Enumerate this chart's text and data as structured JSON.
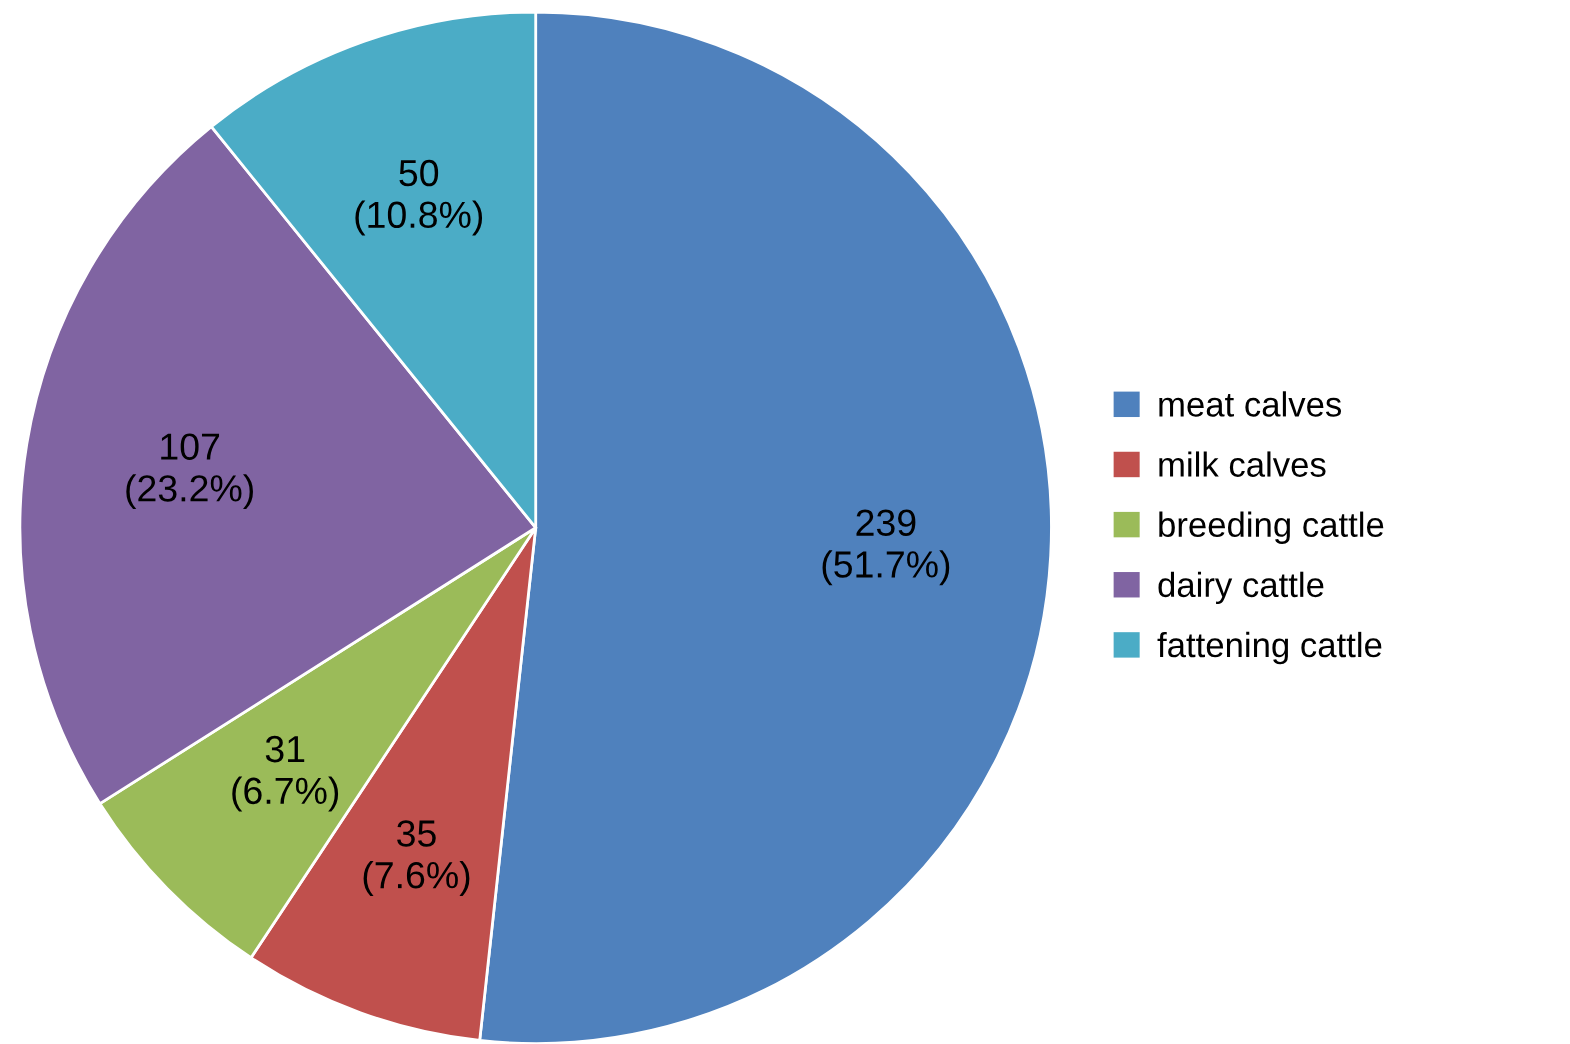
{
  "chart_data": {
    "type": "pie",
    "categories": [
      "meat calves",
      "milk calves",
      "breeding cattle",
      "dairy cattle",
      "fattening cattle"
    ],
    "values": [
      239,
      35,
      31,
      107,
      50
    ],
    "colors": [
      "#4f81bd",
      "#c0504d",
      "#9bbb59",
      "#8064a2",
      "#4bacc6"
    ],
    "value_labels": [
      "239\n(51.7%)",
      "35\n(7.6%)",
      "31\n(6.7%)",
      "107\n(23.2%)",
      "50\n(10.8%)"
    ],
    "legend": "right"
  }
}
